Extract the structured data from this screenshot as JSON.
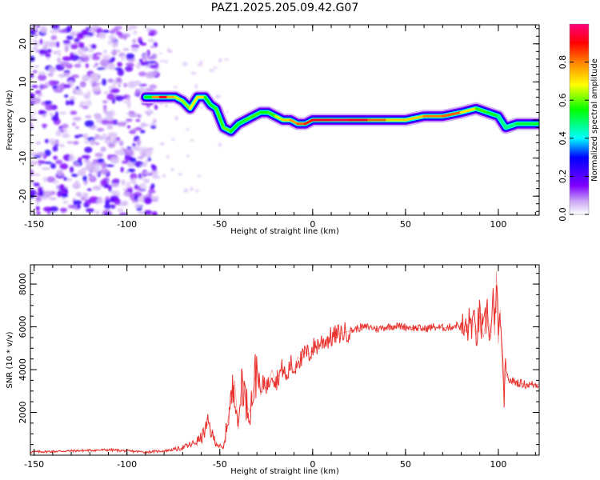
{
  "chart_data": [
    {
      "type": "heatmap",
      "title": "PAZ1.2025.205.09.42.G07",
      "xlabel": "Height of straight line (km)",
      "ylabel": "Frequency (Hz)",
      "xlim": [
        -152,
        122
      ],
      "ylim": [
        -25,
        25
      ],
      "xticks": [
        -150,
        -100,
        -50,
        0,
        50,
        100
      ],
      "yticks": [
        -20,
        -10,
        0,
        10,
        20
      ],
      "ridge": {
        "x": [
          -90,
          -86,
          -82,
          -78,
          -74,
          -70,
          -66,
          -62,
          -58,
          -55,
          -52,
          -48,
          -44,
          -40,
          -36,
          -32,
          -28,
          -24,
          -20,
          -16,
          -12,
          -8,
          -4,
          0,
          10,
          20,
          30,
          40,
          50,
          60,
          70,
          80,
          88,
          94,
          100,
          104,
          110,
          116,
          122
        ],
        "y": [
          6,
          6,
          6,
          6,
          6,
          5,
          3,
          6,
          6,
          4,
          3,
          -2,
          -3,
          -1,
          0,
          1,
          2,
          2,
          1,
          0,
          0,
          -1,
          -1,
          0,
          0,
          0,
          0,
          0,
          0,
          1,
          1,
          2,
          3,
          2,
          1,
          -2,
          -1,
          -1,
          -1
        ],
        "amplitude": [
          0.5,
          0.6,
          0.95,
          0.9,
          0.6,
          0.7,
          0.55,
          0.8,
          0.6,
          0.5,
          0.55,
          0.6,
          0.6,
          0.5,
          0.55,
          0.6,
          0.55,
          0.55,
          0.6,
          0.7,
          0.75,
          0.8,
          0.85,
          0.9,
          0.95,
          0.95,
          0.9,
          0.75,
          0.7,
          0.75,
          0.85,
          0.8,
          0.6,
          0.55,
          0.5,
          0.45,
          0.5,
          0.55,
          0.5
        ]
      },
      "noise_region": {
        "x_range": [
          -152,
          -84
        ],
        "y_range": [
          -25,
          25
        ]
      },
      "colorbar": {
        "label": "Normalized spectral amplitude",
        "range": [
          0,
          1
        ],
        "ticks": [
          "0.0",
          "0.2",
          "0.4",
          "0.6",
          "0.8"
        ]
      }
    },
    {
      "type": "line",
      "title": "",
      "xlabel": "Height of straight line (km)",
      "ylabel": "SNR (10 * v/v)",
      "xlim": [
        -152,
        122
      ],
      "ylim": [
        0,
        8900
      ],
      "xticks": [
        -150,
        -100,
        -50,
        0,
        50,
        100
      ],
      "yticks": [
        2000,
        4000,
        6000,
        8000
      ],
      "series": [
        {
          "color": "#e8302c",
          "x": [
            -152,
            -130,
            -110,
            -90,
            -80,
            -72,
            -65,
            -60,
            -56,
            -54,
            -52,
            -50,
            -48,
            -46,
            -44,
            -42,
            -40,
            -38,
            -36,
            -34,
            -32,
            -30,
            -28,
            -26,
            -24,
            -22,
            -20,
            -18,
            -16,
            -14,
            -12,
            -10,
            -8,
            -6,
            -4,
            -2,
            0,
            5,
            10,
            15,
            20,
            25,
            30,
            35,
            40,
            45,
            50,
            55,
            60,
            65,
            70,
            75,
            78,
            82,
            86,
            88,
            90,
            92,
            94,
            96,
            97,
            98,
            99,
            100,
            101,
            102,
            103,
            104,
            106,
            110,
            115,
            122
          ],
          "y": [
            150,
            200,
            250,
            150,
            200,
            300,
            500,
            800,
            1500,
            900,
            600,
            400,
            300,
            1500,
            2500,
            3500,
            1200,
            3800,
            2500,
            2000,
            3000,
            4200,
            2800,
            3500,
            3200,
            4000,
            3400,
            3800,
            4100,
            3500,
            4300,
            3900,
            4600,
            4400,
            4800,
            4700,
            5000,
            5300,
            5500,
            5700,
            5800,
            5950,
            6000,
            5900,
            6000,
            6050,
            6000,
            5950,
            5900,
            6000,
            5950,
            6000,
            6100,
            5800,
            6300,
            5600,
            6500,
            5500,
            6800,
            5400,
            7500,
            5600,
            8600,
            5200,
            6800,
            4200,
            3000,
            3800,
            3500,
            3400,
            3300,
            3300
          ]
        }
      ]
    }
  ]
}
